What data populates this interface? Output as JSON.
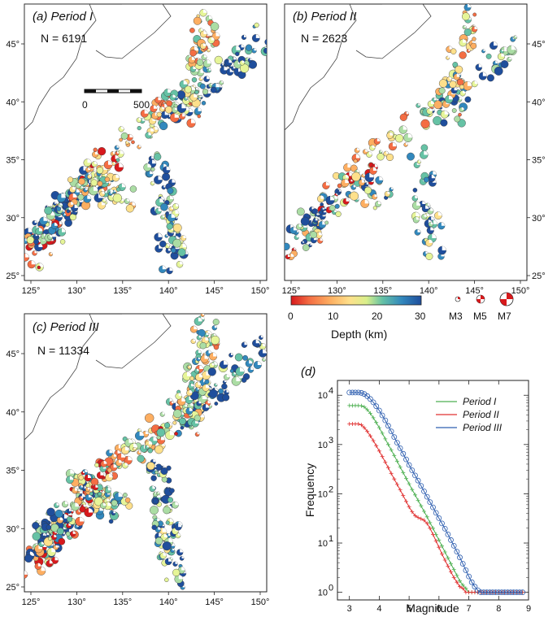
{
  "maps": [
    {
      "title": "(a) Period I",
      "count_text": "N = 6191",
      "scale_bar": {
        "left": "0",
        "right": "500"
      }
    },
    {
      "title": "(b) Period II",
      "count_text": "N = 2623"
    },
    {
      "title": "(c) Period III",
      "count_text": "N = 11334"
    }
  ],
  "map_axes": {
    "lon_ticks": [
      "125°",
      "130°",
      "135°",
      "140°",
      "145°",
      "150°"
    ],
    "lat_ticks": [
      "25°",
      "30°",
      "35°",
      "40°",
      "45°"
    ]
  },
  "depth_colorbar": {
    "label": "Depth (km)",
    "ticks": [
      "0",
      "10",
      "20",
      "30"
    ],
    "colors": [
      "#d7191c",
      "#f46d43",
      "#fdae61",
      "#fee08b",
      "#e6f598",
      "#abdda4",
      "#66c2a5",
      "#3288bd",
      "#1f4e9c"
    ]
  },
  "magnitude_legend": [
    "M3",
    "M5",
    "M7"
  ],
  "colors": {
    "period1": "#4caf50",
    "period2": "#e03030",
    "period3": "#2f5fb0",
    "deep": "#1f4e9c"
  },
  "chart_data": {
    "type": "line",
    "title": "(d)",
    "xlabel": "Magnitude",
    "ylabel": "Frequency",
    "yscale": "log",
    "xlim": [
      2.6,
      9
    ],
    "ylim": [
      0.7,
      20000
    ],
    "x_ticks": [
      "3",
      "4",
      "5",
      "6",
      "7",
      "8",
      "9"
    ],
    "y_ticks": [
      {
        "value": 1,
        "label": "10",
        "exp": "0"
      },
      {
        "value": 10,
        "label": "10",
        "exp": "1"
      },
      {
        "value": 100,
        "label": "10",
        "exp": "2"
      },
      {
        "value": 1000,
        "label": "10",
        "exp": "3"
      },
      {
        "value": 10000,
        "label": "10",
        "exp": "4"
      }
    ],
    "x": [
      2.6,
      2.7,
      2.8,
      2.9,
      3.0,
      3.1,
      3.2,
      3.3,
      3.4,
      3.5,
      3.6,
      3.7,
      3.8,
      3.9,
      4.0,
      4.1,
      4.2,
      4.3,
      4.4,
      4.5,
      4.6,
      4.7,
      4.8,
      4.9,
      5.0,
      5.1,
      5.2,
      5.3,
      5.4,
      5.5,
      5.6,
      5.7,
      5.8,
      5.9,
      6.0,
      6.1,
      6.2,
      6.3,
      6.4,
      6.5,
      6.6,
      6.7,
      6.8,
      6.9,
      7.0,
      7.1,
      7.2,
      7.3,
      7.4,
      7.5,
      7.6,
      7.7,
      7.8,
      7.9,
      8.0,
      8.1,
      8.2,
      8.3,
      8.4,
      8.5,
      8.6,
      8.7,
      8.8
    ],
    "series": [
      {
        "name": "Period I",
        "color": "#4caf50",
        "marker": "plus",
        "values": [
          6191,
          6191,
          6191,
          6191,
          6191,
          6191,
          6191,
          6191,
          6100,
          5800,
          5100,
          4300,
          3500,
          2800,
          2200,
          1700,
          1300,
          1000,
          780,
          600,
          460,
          350,
          270,
          205,
          160,
          122,
          95,
          74,
          57,
          44,
          34,
          26,
          20,
          15,
          11.5,
          8.7,
          6.6,
          5,
          3.8,
          2.9,
          2.2,
          1.7,
          1.4,
          1.2,
          1,
          1,
          1,
          1,
          1,
          1,
          1,
          1,
          1,
          1,
          1,
          1,
          1,
          1,
          1,
          1,
          1,
          1,
          1
        ]
      },
      {
        "name": "Period II",
        "color": "#e03030",
        "marker": "plus",
        "values": [
          2623,
          2623,
          2623,
          2623,
          2623,
          2623,
          2623,
          2623,
          2500,
          2200,
          1850,
          1500,
          1200,
          950,
          740,
          570,
          440,
          340,
          260,
          200,
          155,
          120,
          92,
          70,
          54,
          43,
          36,
          33,
          31,
          29,
          25,
          20,
          15,
          11,
          8.2,
          6,
          4.5,
          3.4,
          2.6,
          2,
          1.6,
          1.3,
          1.2,
          1,
          1,
          1,
          1,
          1,
          1,
          1,
          1,
          1,
          1,
          1,
          1,
          1,
          1,
          1,
          1,
          1,
          1,
          1,
          1
        ]
      },
      {
        "name": "Period III",
        "color": "#2f5fb0",
        "marker": "circle",
        "values": [
          11334,
          11334,
          11334,
          11334,
          11334,
          11334,
          11334,
          11334,
          11200,
          10600,
          9600,
          8400,
          7200,
          6000,
          4900,
          3900,
          3100,
          2400,
          1850,
          1420,
          1090,
          840,
          650,
          500,
          385,
          300,
          235,
          185,
          145,
          112,
          87,
          68,
          53,
          41,
          32,
          25,
          19.5,
          15,
          11.5,
          8.8,
          6.7,
          5.1,
          3.8,
          2.8,
          2.1,
          1.6,
          1.3,
          1.1,
          1,
          1,
          1,
          1,
          1,
          1,
          1,
          1,
          1,
          1,
          1,
          1,
          1,
          1,
          1
        ]
      }
    ]
  }
}
